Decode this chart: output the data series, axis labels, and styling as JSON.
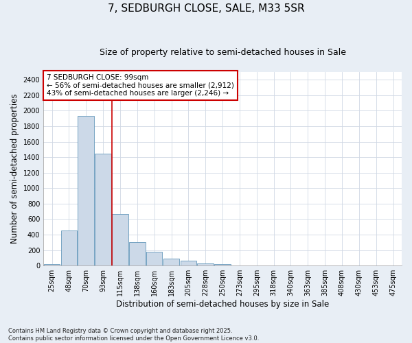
{
  "title": "7, SEDBURGH CLOSE, SALE, M33 5SR",
  "subtitle": "Size of property relative to semi-detached houses in Sale",
  "xlabel": "Distribution of semi-detached houses by size in Sale",
  "ylabel": "Number of semi-detached properties",
  "footnote": "Contains HM Land Registry data © Crown copyright and database right 2025.\nContains public sector information licensed under the Open Government Licence v3.0.",
  "categories": [
    "25sqm",
    "48sqm",
    "70sqm",
    "93sqm",
    "115sqm",
    "138sqm",
    "160sqm",
    "183sqm",
    "205sqm",
    "228sqm",
    "250sqm",
    "273sqm",
    "295sqm",
    "318sqm",
    "340sqm",
    "363sqm",
    "385sqm",
    "408sqm",
    "430sqm",
    "453sqm",
    "475sqm"
  ],
  "values": [
    20,
    450,
    1930,
    1450,
    670,
    300,
    175,
    90,
    60,
    30,
    20,
    5,
    5,
    5,
    5,
    5,
    5,
    5,
    5,
    5,
    5
  ],
  "bar_color": "#ccd9e8",
  "bar_edge_color": "#6699bb",
  "property_line_color": "#cc0000",
  "property_line_index": 3.5,
  "annotation_text": "7 SEDBURGH CLOSE: 99sqm\n← 56% of semi-detached houses are smaller (2,912)\n43% of semi-detached houses are larger (2,246) →",
  "annotation_box_color": "#cc0000",
  "ylim": [
    0,
    2500
  ],
  "yticks": [
    0,
    200,
    400,
    600,
    800,
    1000,
    1200,
    1400,
    1600,
    1800,
    2000,
    2200,
    2400
  ],
  "plot_bg_color": "#ffffff",
  "fig_bg_color": "#e8eef5",
  "grid_color": "#d0d8e4",
  "title_fontsize": 11,
  "subtitle_fontsize": 9,
  "axis_label_fontsize": 8.5,
  "tick_fontsize": 7,
  "annotation_fontsize": 7.5,
  "footnote_fontsize": 6
}
